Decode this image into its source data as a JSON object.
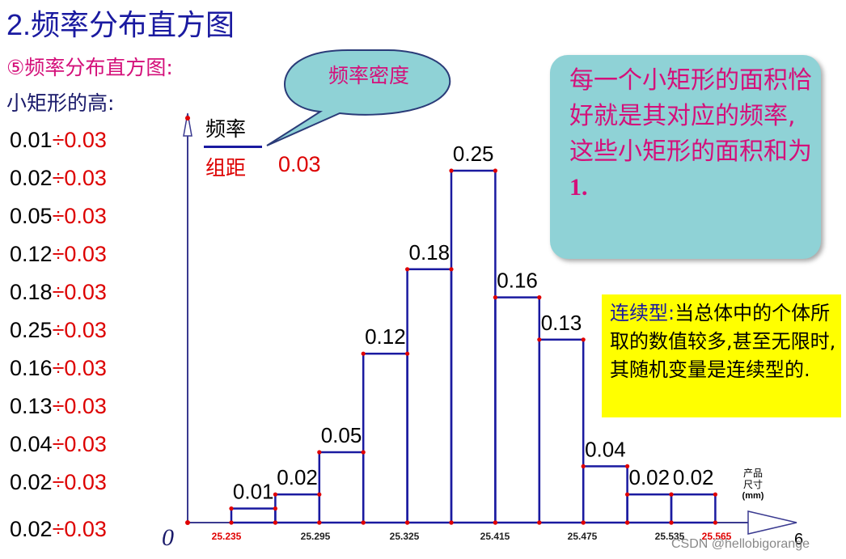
{
  "title": {
    "number": "2.",
    "text": "频率分布直方图"
  },
  "subtitle": "⑤频率分布直方图:",
  "height_label": "小矩形的高:",
  "calc_rows": [
    {
      "num": "0.01",
      "op": "÷",
      "div": "0.03"
    },
    {
      "num": "0.02",
      "op": "÷",
      "div": "0.03"
    },
    {
      "num": "0.05",
      "op": "÷",
      "div": "0.03"
    },
    {
      "num": "0.12",
      "op": "÷",
      "div": "0.03"
    },
    {
      "num": "0.18",
      "op": "÷",
      "div": "0.03"
    },
    {
      "num": "0.25",
      "op": "÷",
      "div": "0.03"
    },
    {
      "num": "0.16",
      "op": "÷",
      "div": "0.03"
    },
    {
      "num": "0.13",
      "op": "÷",
      "div": "0.03"
    },
    {
      "num": "0.04",
      "op": "÷",
      "div": "0.03"
    },
    {
      "num": "0.02",
      "op": "÷",
      "div": "0.03"
    },
    {
      "num": "0.02",
      "op": "÷",
      "div": "0.03"
    }
  ],
  "bubble_text": "频率密度",
  "callout": {
    "text": "每一个小矩形的面积恰好就是其对应的频率,这些小矩形的面积和为",
    "bold": "1."
  },
  "yellow_box": {
    "keyword": "连续型:",
    "text": "当总体中的个体所取的数值较多,甚至无限时,其随机变量是连续型的."
  },
  "y_axis": {
    "top": "频率",
    "bottom": "组距",
    "value": "0.03"
  },
  "origin": "0",
  "unit_label": {
    "line1": "产品",
    "line2": "尺寸",
    "line3": "(mm)"
  },
  "page_number": "6",
  "credit": "CSDN @hellobigorange",
  "colors": {
    "bar_stroke": "#1a1aa0",
    "point": "#e00000",
    "axis": "#3a3a90",
    "red_tick": "#e00000"
  },
  "chart_data": {
    "type": "bar",
    "title": "",
    "xlabel": "产品尺寸(mm)",
    "ylabel": "频率/组距",
    "x_tick_labels": [
      {
        "text": "25.235",
        "color": "red"
      },
      {
        "text": "25.295",
        "color": "black"
      },
      {
        "text": "25.325",
        "color": "black"
      },
      {
        "text": "25.415",
        "color": "black"
      },
      {
        "text": "25.475",
        "color": "black"
      },
      {
        "text": "25.535",
        "color": "black"
      },
      {
        "text": "25.565",
        "color": "red"
      }
    ],
    "bars": [
      {
        "label": "0.01",
        "value": 0.01
      },
      {
        "label": "0.02",
        "value": 0.02
      },
      {
        "label": "0.05",
        "value": 0.05
      },
      {
        "label": "0.12",
        "value": 0.12
      },
      {
        "label": "0.18",
        "value": 0.18
      },
      {
        "label": "0.25",
        "value": 0.25
      },
      {
        "label": "0.16",
        "value": 0.16
      },
      {
        "label": "0.13",
        "value": 0.13
      },
      {
        "label": "0.04",
        "value": 0.04
      },
      {
        "label": "0.02",
        "value": 0.02
      },
      {
        "label": "0.02",
        "value": 0.02
      }
    ]
  }
}
